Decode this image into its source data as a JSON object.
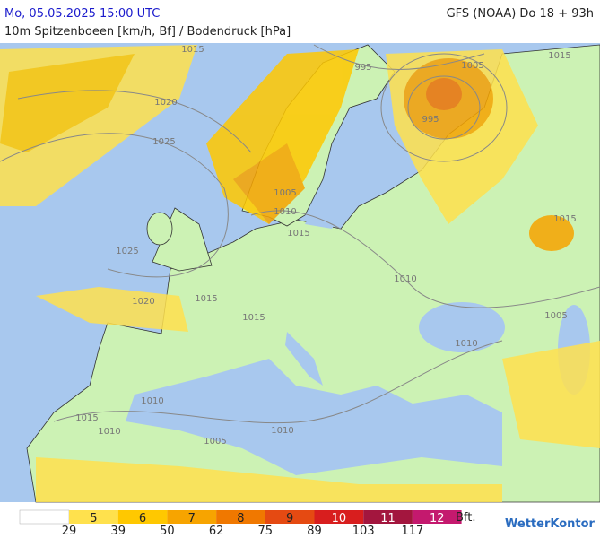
{
  "header": {
    "datetime": "Mo, 05.05.2025 15:00 UTC",
    "model": "GFS (NOAA) Do 18 + 93h",
    "subtitle": "10m Spitzenboeen [km/h, Bf] / Bodendruck [hPa]"
  },
  "map": {
    "isobar_labels": [
      "1015",
      "995",
      "1005",
      "1015",
      "1020",
      "1025",
      "995",
      "1005",
      "1010",
      "1015",
      "1015",
      "1025",
      "1020",
      "1015",
      "1010",
      "1015",
      "1005",
      "1010",
      "1015",
      "1010",
      "1005",
      "1010",
      "1010"
    ]
  },
  "legend": {
    "bft": [
      {
        "label": "5",
        "color": "#ffe14d"
      },
      {
        "label": "6",
        "color": "#ffc800"
      },
      {
        "label": "7",
        "color": "#f7a400"
      },
      {
        "label": "8",
        "color": "#f07800"
      },
      {
        "label": "9",
        "color": "#e54a12"
      },
      {
        "label": "10",
        "color": "#d81e1e"
      },
      {
        "label": "11",
        "color": "#a3163e"
      },
      {
        "label": "12",
        "color": "#c4196e"
      }
    ],
    "unit": "Bft.",
    "kmh": [
      "29",
      "39",
      "50",
      "62",
      "75",
      "89",
      "103",
      "117"
    ]
  },
  "logo": "WetterKontor"
}
